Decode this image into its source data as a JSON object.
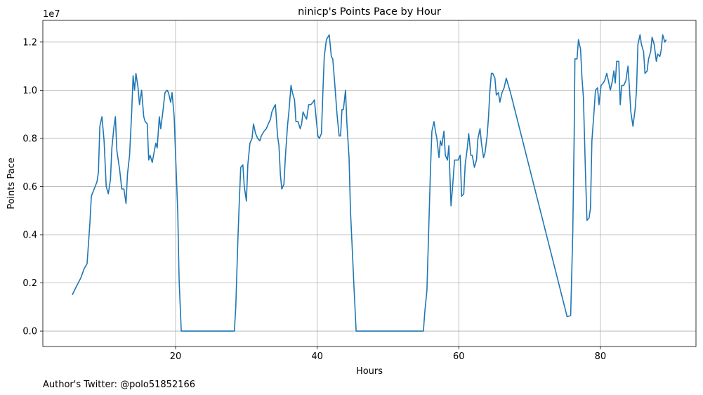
{
  "chart_data": {
    "type": "line",
    "title": "ninicp's Points Pace by Hour",
    "x_label": "Hours",
    "y_label": "Points Pace",
    "y_offset_text": "1e7",
    "footer": "Author's Twitter: @polo51852166",
    "grid": true,
    "color": "#1f77b4",
    "xlim": [
      1.25,
      93.5
    ],
    "xticks": [
      20,
      40,
      60,
      80
    ],
    "ylim": [
      -0.064,
      1.29
    ],
    "yticks": [
      {
        "value": 0,
        "label": "0.0"
      },
      0.2,
      0.4,
      0.6,
      0.8,
      {
        "value": 1.0,
        "label": "1.0"
      },
      1.2
    ],
    "x": [
      5.4,
      5.9,
      6.6,
      7.1,
      7.5,
      7.9,
      8.1,
      8.5,
      8.9,
      9.1,
      9.3,
      9.6,
      9.9,
      10.2,
      10.5,
      10.8,
      11.0,
      11.3,
      11.5,
      11.7,
      12.1,
      12.4,
      12.7,
      13.0,
      13.2,
      13.5,
      13.8,
      14.0,
      14.2,
      14.4,
      14.7,
      14.9,
      15.2,
      15.5,
      15.7,
      16.0,
      16.2,
      16.4,
      16.7,
      17.2,
      17.4,
      17.7,
      17.9,
      18.2,
      18.5,
      18.8,
      19.0,
      19.3,
      19.5,
      19.8,
      20.0,
      20.3,
      20.5,
      20.8,
      28.3,
      28.5,
      28.8,
      29.0,
      29.2,
      29.5,
      29.7,
      30.0,
      30.2,
      30.5,
      30.8,
      31.0,
      31.3,
      31.6,
      31.9,
      32.1,
      32.5,
      32.8,
      33.1,
      33.4,
      33.6,
      33.9,
      34.1,
      34.4,
      34.6,
      34.8,
      35.0,
      35.3,
      35.5,
      35.8,
      36.0,
      36.3,
      36.5,
      36.8,
      37.0,
      37.3,
      37.6,
      37.8,
      38.0,
      38.3,
      38.5,
      38.8,
      39.1,
      39.4,
      39.6,
      39.8,
      40.1,
      40.3,
      40.6,
      40.8,
      41.0,
      41.3,
      41.5,
      41.7,
      42.0,
      42.2,
      42.5,
      42.8,
      43.1,
      43.3,
      43.5,
      43.7,
      44.0,
      44.2,
      44.5,
      44.7,
      45.0,
      45.2,
      45.5,
      55.0,
      55.2,
      55.5,
      55.7,
      56.0,
      56.2,
      56.5,
      56.7,
      56.9,
      57.2,
      57.4,
      57.6,
      57.9,
      58.1,
      58.4,
      58.6,
      58.9,
      59.1,
      59.4,
      59.7,
      59.9,
      60.2,
      60.4,
      60.7,
      60.9,
      61.2,
      61.4,
      61.7,
      61.9,
      62.2,
      62.5,
      62.7,
      63.0,
      63.2,
      63.5,
      63.7,
      64.0,
      64.2,
      64.4,
      64.6,
      64.8,
      65.1,
      65.3,
      65.6,
      65.8,
      66.1,
      66.4,
      66.7,
      67.0,
      67.3,
      75.3,
      75.8,
      76.1,
      76.3,
      76.4,
      76.7,
      76.9,
      77.2,
      77.4,
      77.6,
      77.9,
      78.1,
      78.4,
      78.6,
      78.8,
      79.1,
      79.3,
      79.6,
      79.8,
      80.1,
      80.4,
      80.6,
      80.9,
      81.2,
      81.4,
      81.7,
      81.9,
      82.1,
      82.3,
      82.6,
      82.8,
      83.0,
      83.3,
      83.6,
      83.9,
      84.1,
      84.3,
      84.6,
      84.9,
      85.1,
      85.3,
      85.6,
      85.8,
      86.1,
      86.3,
      86.6,
      86.8,
      87.1,
      87.3,
      87.6,
      87.9,
      88.1,
      88.4,
      88.6,
      88.8,
      89.1,
      89.3
    ],
    "values": [
      0.15,
      0.18,
      0.22,
      0.26,
      0.28,
      0.45,
      0.56,
      0.59,
      0.62,
      0.66,
      0.85,
      0.89,
      0.79,
      0.6,
      0.57,
      0.63,
      0.76,
      0.85,
      0.89,
      0.75,
      0.67,
      0.59,
      0.59,
      0.53,
      0.65,
      0.73,
      0.91,
      1.06,
      1.0,
      1.07,
      1.01,
      0.94,
      1.0,
      0.89,
      0.87,
      0.86,
      0.71,
      0.73,
      0.7,
      0.78,
      0.76,
      0.89,
      0.84,
      0.91,
      0.99,
      1.0,
      0.99,
      0.95,
      0.99,
      0.89,
      0.73,
      0.5,
      0.21,
      0,
      0,
      0.1,
      0.38,
      0.54,
      0.68,
      0.69,
      0.6,
      0.54,
      0.69,
      0.78,
      0.8,
      0.86,
      0.82,
      0.8,
      0.79,
      0.81,
      0.83,
      0.84,
      0.86,
      0.88,
      0.91,
      0.93,
      0.94,
      0.81,
      0.77,
      0.65,
      0.59,
      0.61,
      0.72,
      0.85,
      0.91,
      1.02,
      0.99,
      0.96,
      0.87,
      0.87,
      0.84,
      0.86,
      0.91,
      0.89,
      0.88,
      0.94,
      0.94,
      0.95,
      0.96,
      0.9,
      0.81,
      0.8,
      0.82,
      0.99,
      1.14,
      1.21,
      1.22,
      1.23,
      1.14,
      1.13,
      1.02,
      0.9,
      0.81,
      0.81,
      0.92,
      0.92,
      1.0,
      0.86,
      0.72,
      0.5,
      0.31,
      0.18,
      0,
      0,
      0.08,
      0.17,
      0.37,
      0.67,
      0.83,
      0.87,
      0.83,
      0.8,
      0.72,
      0.79,
      0.77,
      0.83,
      0.73,
      0.71,
      0.77,
      0.52,
      0.59,
      0.71,
      0.71,
      0.71,
      0.73,
      0.56,
      0.57,
      0.69,
      0.76,
      0.82,
      0.73,
      0.73,
      0.68,
      0.71,
      0.8,
      0.84,
      0.78,
      0.72,
      0.74,
      0.81,
      0.89,
      1.0,
      1.07,
      1.07,
      1.05,
      0.98,
      0.99,
      0.95,
      0.99,
      1.01,
      1.05,
      1.02,
      0.99,
      0.06,
      0.064,
      0.41,
      0.82,
      1.13,
      1.13,
      1.21,
      1.17,
      1.05,
      0.97,
      0.65,
      0.46,
      0.47,
      0.51,
      0.79,
      0.91,
      1.0,
      1.01,
      0.94,
      1.02,
      1.03,
      1.04,
      1.07,
      1.03,
      1.0,
      1.04,
      1.08,
      1.03,
      1.12,
      1.12,
      0.94,
      1.02,
      1.02,
      1.04,
      1.1,
      1.01,
      0.91,
      0.85,
      0.92,
      1.0,
      1.19,
      1.23,
      1.19,
      1.16,
      1.07,
      1.08,
      1.13,
      1.16,
      1.22,
      1.19,
      1.12,
      1.15,
      1.14,
      1.17,
      1.23,
      1.2,
      1.21
    ]
  }
}
